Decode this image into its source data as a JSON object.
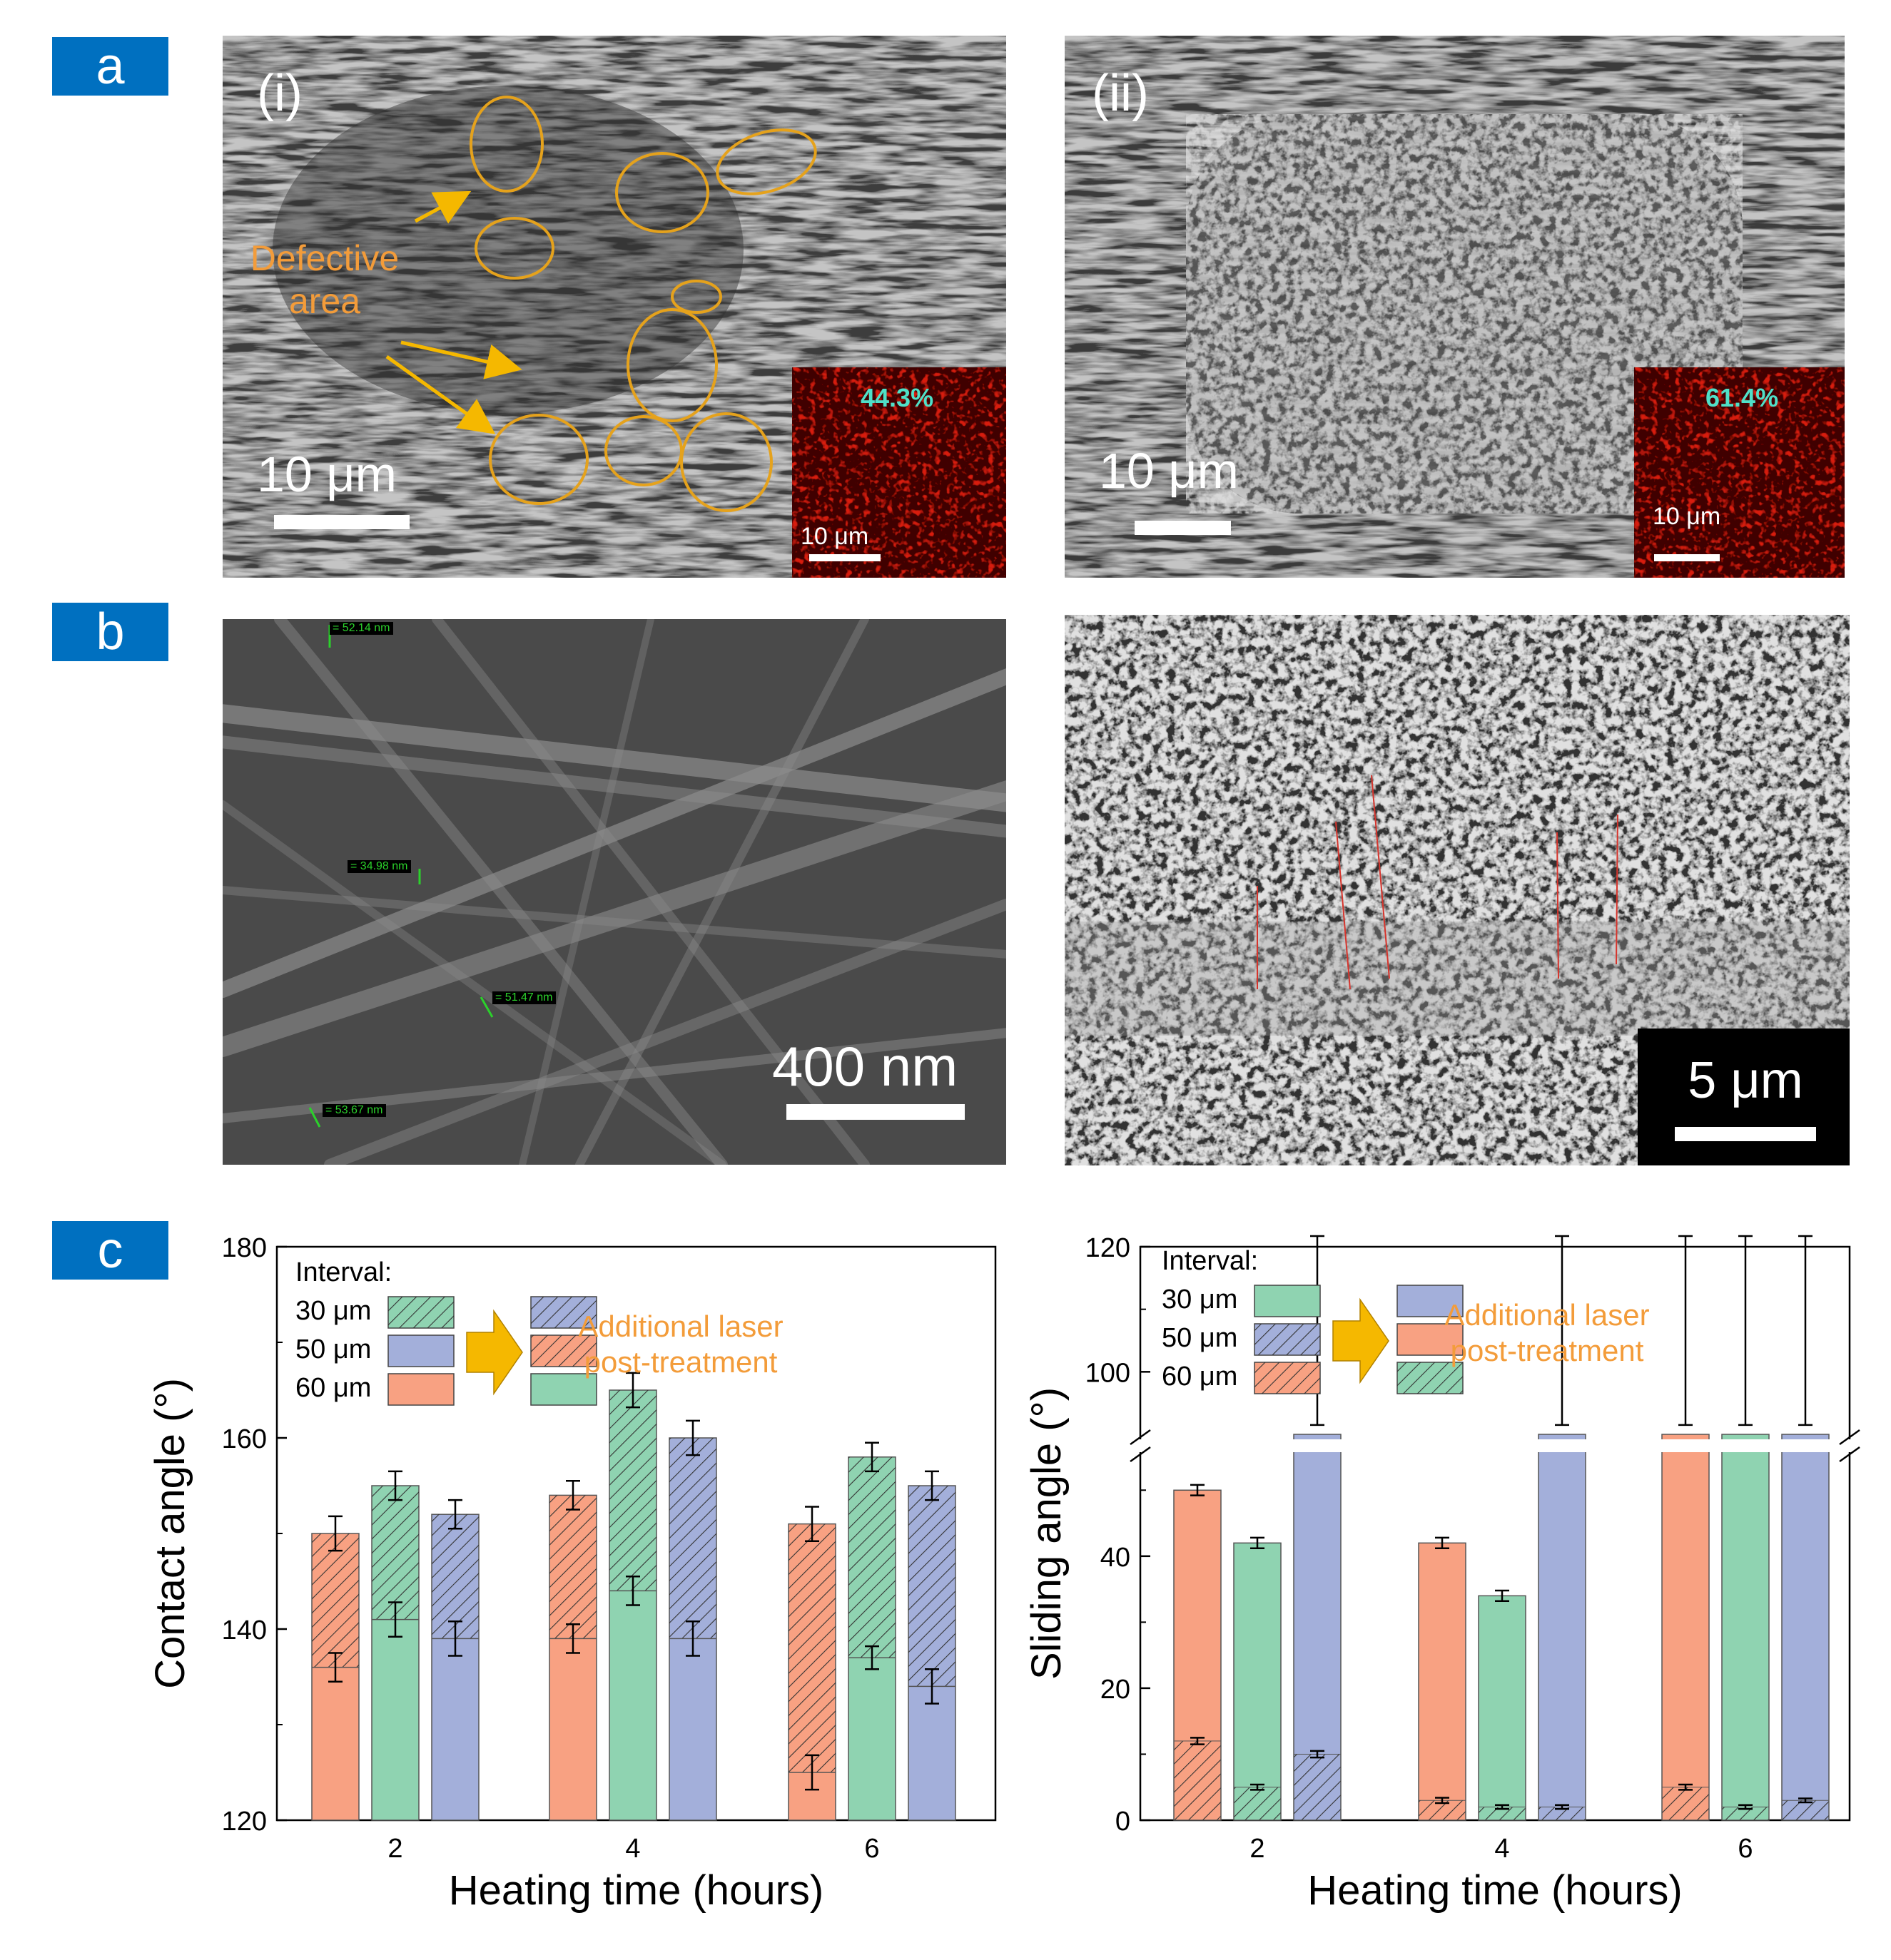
{
  "labels": {
    "a": "a",
    "b": "b",
    "c": "c"
  },
  "panel_a": {
    "left": {
      "tag": "(i)",
      "annotation_line1": "Defective",
      "annotation_line2": "area",
      "scale": "10 μm",
      "inset_percent": "44.3%",
      "inset_scale": "10 μm"
    },
    "right": {
      "tag": "(ii)",
      "scale": "10 μm",
      "inset_percent": "61.4%",
      "inset_scale": "10 μm"
    }
  },
  "panel_b": {
    "left": {
      "scale": "400 nm",
      "measurements": [
        "= 52.14 nm",
        "= 34.98 nm",
        "= 51.47 nm",
        "= 53.67 nm"
      ]
    },
    "right": {
      "scale": "5 μm"
    }
  },
  "colors": {
    "orange": "#f8a182",
    "green": "#8fd3b1",
    "blue": "#a3afda",
    "annotation": "#f39c3a",
    "badge": "#0070c0",
    "circle": "#e5a21c",
    "arrow": "#f5b800"
  },
  "chart_data": [
    {
      "type": "bar",
      "stacked": true,
      "ylabel": "Contact angle (°)",
      "xlabel": "Heating time (hours)",
      "categories": [
        "2",
        "4",
        "6"
      ],
      "ylim": [
        120,
        180
      ],
      "yticks": [
        "120",
        "140",
        "160",
        "180"
      ],
      "legend": {
        "title": "Interval:",
        "rows": [
          "30 μm",
          "50 μm",
          "60 μm"
        ],
        "note_line1": "Additional laser",
        "note_line2": "post-treatment"
      },
      "series": [
        {
          "name": "60 μm",
          "color": "orange",
          "base": [
            136,
            139,
            125
          ],
          "base_err": [
            1.5,
            1.5,
            1.8
          ],
          "treated": [
            150,
            154,
            151
          ],
          "treated_err": [
            1.8,
            1.5,
            1.8
          ]
        },
        {
          "name": "30 μm",
          "color": "green",
          "base": [
            141,
            144,
            137
          ],
          "base_err": [
            1.8,
            1.5,
            1.2
          ],
          "treated": [
            155,
            165,
            158
          ],
          "treated_err": [
            1.5,
            1.8,
            1.5
          ]
        },
        {
          "name": "50 μm",
          "color": "blue",
          "base": [
            139,
            139,
            134
          ],
          "base_err": [
            1.8,
            1.8,
            1.8
          ],
          "treated": [
            152,
            160,
            155
          ],
          "treated_err": [
            1.5,
            1.8,
            1.5
          ]
        }
      ]
    },
    {
      "type": "bar",
      "stacked": true,
      "broken_axis": true,
      "ylabel": "Sliding angle (°)",
      "xlabel": "Heating time (hours)",
      "categories": [
        "2",
        "4",
        "6"
      ],
      "ylim_lower": [
        0,
        55
      ],
      "ylim_upper": [
        90,
        120
      ],
      "yticks": [
        "0",
        "20",
        "40",
        "100",
        "120"
      ],
      "legend": {
        "title": "Interval:",
        "rows": [
          "30 μm",
          "50 μm",
          "60 μm"
        ],
        "note_line1": "Additional laser",
        "note_line2": "post-treatment"
      },
      "series": [
        {
          "name": "60 μm",
          "color": "orange",
          "total": [
            50,
            42,
            90
          ],
          "total_err": [
            0.8,
            0.8,
            1.5
          ],
          "treated": [
            12,
            3,
            5
          ],
          "treated_err": [
            0.5,
            0.4,
            0.4
          ]
        },
        {
          "name": "30 μm",
          "color": "green",
          "total": [
            42,
            34,
            90
          ],
          "total_err": [
            0.8,
            0.8,
            1.5
          ],
          "treated": [
            5,
            2,
            2
          ],
          "treated_err": [
            0.4,
            0.3,
            0.3
          ]
        },
        {
          "name": "50 μm",
          "color": "blue",
          "total": [
            90,
            90,
            90
          ],
          "total_err": [
            1.5,
            1.5,
            1.5
          ],
          "treated": [
            10,
            2,
            3
          ],
          "treated_err": [
            0.5,
            0.3,
            0.3
          ]
        }
      ]
    }
  ]
}
